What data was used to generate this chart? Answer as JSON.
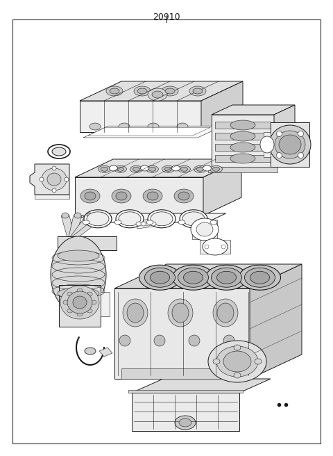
{
  "title": "20910",
  "bg_color": "#ffffff",
  "border_color": "#333333",
  "line_color": "#1a1a1a",
  "fig_width": 4.8,
  "fig_height": 6.56,
  "dpi": 100,
  "title_fontsize": 9,
  "lw_main": 0.7,
  "lw_thin": 0.4,
  "lw_thick": 1.0
}
